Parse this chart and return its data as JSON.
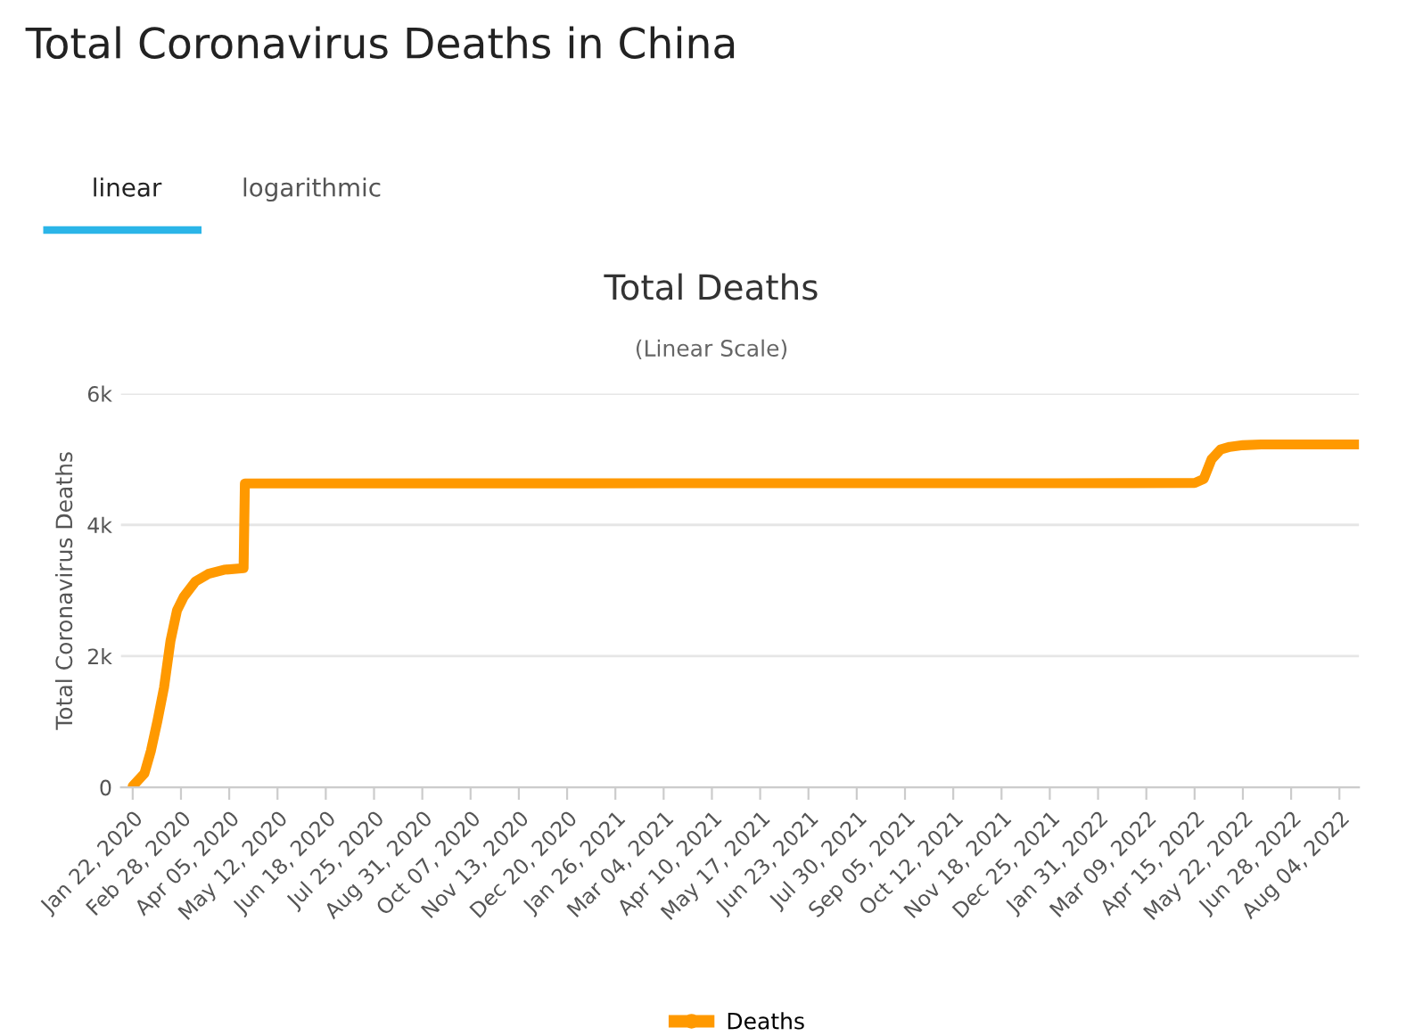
{
  "chart_data": {
    "type": "line",
    "title": "Total Deaths",
    "subtitle": "(Linear Scale)",
    "ylabel": "Total Coronavirus Deaths",
    "annotations": [
      "Total Coronavirus Deaths in China",
      "linear",
      "logarithmic"
    ],
    "series": [
      {
        "name": "Deaths",
        "color": "#ff9900",
        "x": [
          "2020-01-22",
          "2020-01-31",
          "2020-02-05",
          "2020-02-10",
          "2020-02-15",
          "2020-02-20",
          "2020-02-25",
          "2020-03-01",
          "2020-03-10",
          "2020-03-20",
          "2020-04-01",
          "2020-04-16",
          "2020-04-17",
          "2021-01-01",
          "2022-01-01",
          "2022-04-15",
          "2022-04-22",
          "2022-04-28",
          "2022-05-05",
          "2022-05-12",
          "2022-05-22",
          "2022-06-05",
          "2022-08-19"
        ],
        "values": [
          17,
          213,
          560,
          1016,
          1520,
          2236,
          2700,
          2900,
          3136,
          3253,
          3316,
          3342,
          4632,
          4634,
          4636,
          4638,
          4700,
          5000,
          5150,
          5190,
          5215,
          5226,
          5226
        ]
      }
    ],
    "ylim": [
      0,
      6000
    ],
    "yticks": [
      {
        "value": 0,
        "label": "0"
      },
      {
        "value": 2000,
        "label": "2k"
      },
      {
        "value": 4000,
        "label": "4k"
      },
      {
        "value": 6000,
        "label": "6k"
      }
    ],
    "xlim": [
      "2020-01-13",
      "2022-08-19"
    ],
    "xticks": [
      {
        "value": "2020-01-22",
        "label": "Jan 22, 2020"
      },
      {
        "value": "2020-02-28",
        "label": "Feb 28, 2020"
      },
      {
        "value": "2020-04-05",
        "label": "Apr 05, 2020"
      },
      {
        "value": "2020-05-12",
        "label": "May 12, 2020"
      },
      {
        "value": "2020-06-18",
        "label": "Jun 18, 2020"
      },
      {
        "value": "2020-07-25",
        "label": "Jul 25, 2020"
      },
      {
        "value": "2020-08-31",
        "label": "Aug 31, 2020"
      },
      {
        "value": "2020-10-07",
        "label": "Oct 07, 2020"
      },
      {
        "value": "2020-11-13",
        "label": "Nov 13, 2020"
      },
      {
        "value": "2020-12-20",
        "label": "Dec 20, 2020"
      },
      {
        "value": "2021-01-26",
        "label": "Jan 26, 2021"
      },
      {
        "value": "2021-03-04",
        "label": "Mar 04, 2021"
      },
      {
        "value": "2021-04-10",
        "label": "Apr 10, 2021"
      },
      {
        "value": "2021-05-17",
        "label": "May 17, 2021"
      },
      {
        "value": "2021-06-23",
        "label": "Jun 23, 2021"
      },
      {
        "value": "2021-07-30",
        "label": "Jul 30, 2021"
      },
      {
        "value": "2021-09-05",
        "label": "Sep 05, 2021"
      },
      {
        "value": "2021-10-12",
        "label": "Oct 12, 2021"
      },
      {
        "value": "2021-11-18",
        "label": "Nov 18, 2021"
      },
      {
        "value": "2021-12-25",
        "label": "Dec 25, 2021"
      },
      {
        "value": "2022-01-31",
        "label": "Jan 31, 2022"
      },
      {
        "value": "2022-03-09",
        "label": "Mar 09, 2022"
      },
      {
        "value": "2022-04-15",
        "label": "Apr 15, 2022"
      },
      {
        "value": "2022-05-22",
        "label": "May 22, 2022"
      },
      {
        "value": "2022-06-28",
        "label": "Jun 28, 2022"
      },
      {
        "value": "2022-08-04",
        "label": "Aug 04, 2022"
      }
    ],
    "grid": "y",
    "legend": "bottom",
    "marker": "none",
    "line_style": "solid"
  }
}
